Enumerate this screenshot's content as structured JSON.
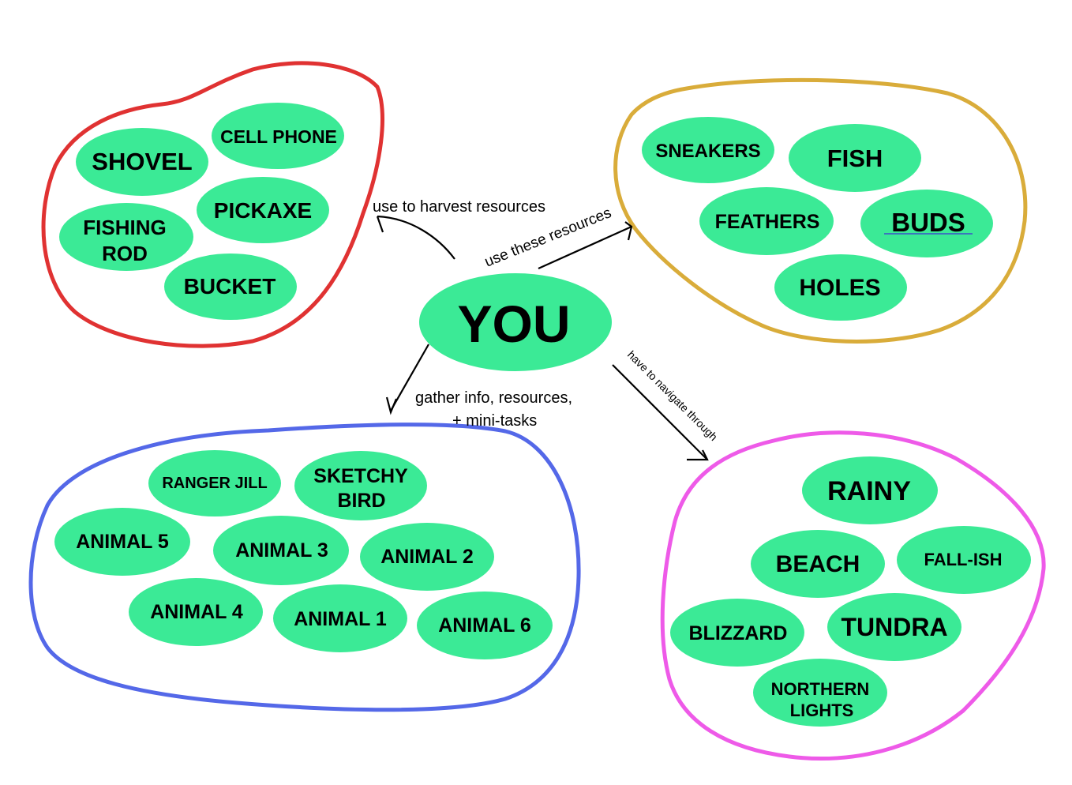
{
  "colors": {
    "node_fill": "#3bea96",
    "tools_outline": "#e03232",
    "resources_outline": "#d9ac3a",
    "characters_outline": "#5468e8",
    "biomes_outline": "#ee5ae8",
    "arrow": "#000000"
  },
  "center": {
    "label": "YOU"
  },
  "groups": {
    "tools": {
      "items": [
        "SHOVEL",
        "CELL PHONE",
        "PICKAXE",
        "FISHING",
        "ROD",
        "BUCKET"
      ]
    },
    "resources": {
      "items": [
        "SNEAKERS",
        "FISH",
        "FEATHERS",
        "BUDS",
        "HOLES"
      ]
    },
    "characters": {
      "items": [
        "RANGER JILL",
        "SKETCHY",
        "BIRD",
        "ANIMAL 5",
        "ANIMAL 3",
        "ANIMAL 2",
        "ANIMAL 4",
        "ANIMAL 1",
        "ANIMAL 6"
      ]
    },
    "biomes": {
      "items": [
        "RAINY",
        "BEACH",
        "FALL-ISH",
        "BLIZZARD",
        "TUNDRA",
        "NORTHERN",
        "LIGHTS"
      ]
    }
  },
  "edges": {
    "to_tools": "use to harvest resources",
    "to_resources": "use these resources",
    "to_characters_line1": "gather info, resources,",
    "to_characters_line2": "+ mini-tasks",
    "to_biomes": "have to navigate through"
  }
}
